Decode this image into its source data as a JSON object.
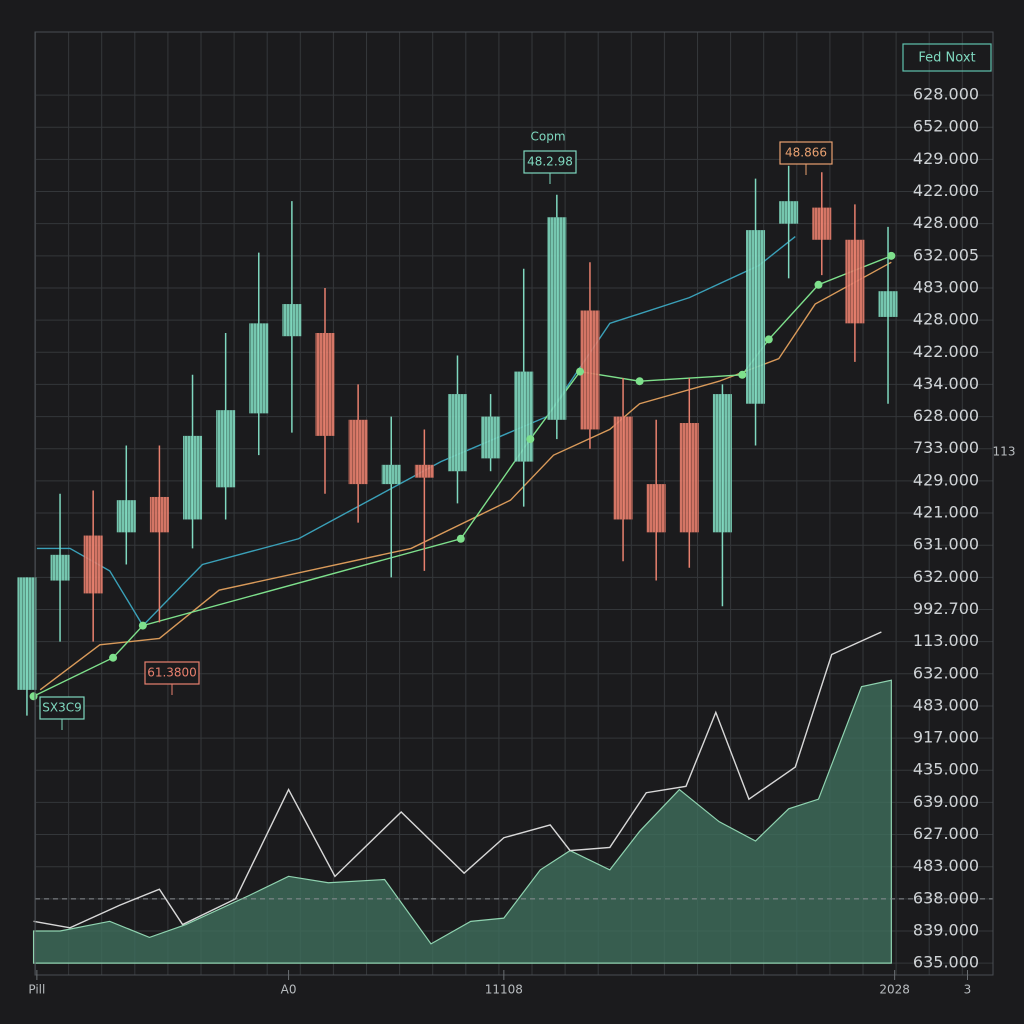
{
  "chart_data": {
    "type": "candlestick",
    "legend_label": "Fed Noxt",
    "side_label": "113",
    "up_color": "#7fd8bf",
    "down_color": "#e8806e",
    "grid": true,
    "x": [
      0,
      1,
      2,
      3,
      4,
      5,
      6,
      7,
      8,
      9,
      10,
      11,
      12,
      13,
      14,
      15,
      16,
      17,
      18,
      19,
      20,
      21,
      22,
      23,
      24,
      25,
      26
    ],
    "open": [
      8.5,
      11.9,
      13.3,
      13.4,
      14.5,
      13.8,
      14.8,
      17.1,
      19.5,
      19.6,
      16.9,
      14.9,
      15.5,
      15.3,
      15.7,
      15.6,
      16.9,
      20.3,
      17.0,
      14.9,
      16.8,
      13.4,
      17.4,
      23.0,
      23.5,
      22.5,
      20.1
    ],
    "high": [
      12.0,
      14.6,
      14.7,
      16.1,
      16.1,
      18.3,
      19.6,
      22.1,
      23.7,
      21.0,
      18.0,
      17.0,
      16.6,
      18.9,
      17.7,
      21.6,
      23.9,
      21.8,
      18.2,
      16.9,
      18.2,
      18.0,
      24.4,
      24.8,
      24.6,
      23.6,
      22.9
    ],
    "low": [
      7.7,
      10.0,
      10.0,
      12.4,
      10.6,
      12.9,
      13.8,
      15.8,
      16.5,
      14.6,
      13.7,
      12.0,
      12.2,
      14.3,
      15.3,
      14.2,
      16.3,
      16.0,
      12.5,
      11.9,
      12.3,
      11.1,
      16.1,
      21.3,
      21.4,
      18.7,
      17.4
    ],
    "close": [
      12.0,
      12.7,
      11.5,
      14.4,
      13.4,
      16.4,
      17.2,
      19.9,
      20.5,
      16.4,
      14.9,
      15.5,
      15.1,
      17.7,
      17.0,
      18.4,
      23.2,
      16.6,
      13.8,
      13.4,
      13.4,
      17.7,
      22.8,
      23.7,
      22.5,
      19.9,
      20.9
    ],
    "overlays": [
      {
        "type": "line",
        "color": "#3aa0b8",
        "x": [
          0.3,
          1.3,
          2.5,
          3.5,
          5.3,
          8.2,
          12.5,
          15.7,
          17.6,
          20.0,
          22.1,
          23.2
        ],
        "values": [
          12.9,
          12.9,
          12.2,
          10.5,
          12.4,
          13.2,
          15.6,
          17.0,
          19.9,
          20.7,
          21.7,
          22.6
        ]
      },
      {
        "type": "line",
        "color": "#d99a5a",
        "x": [
          0.4,
          2.2,
          4.0,
          5.8,
          11.6,
          14.6,
          15.9,
          17.6,
          18.5,
          20.9,
          22.7,
          23.8,
          26.1
        ],
        "values": [
          8.5,
          9.9,
          10.1,
          11.6,
          12.9,
          14.4,
          15.8,
          16.6,
          17.4,
          18.1,
          18.8,
          20.5,
          21.8
        ]
      },
      {
        "type": "line",
        "color": "#7ee08c",
        "markers": true,
        "x": [
          0.2,
          2.6,
          3.5,
          13.1,
          15.2,
          16.7,
          18.5,
          21.6,
          22.4,
          23.9,
          26.1
        ],
        "values": [
          8.3,
          9.5,
          10.5,
          13.2,
          16.3,
          18.4,
          18.1,
          18.3,
          19.4,
          21.1,
          22.0
        ]
      },
      {
        "type": "area",
        "color": "#8fd3b0",
        "x": [
          0.2,
          1.0,
          2.5,
          3.7,
          4.8,
          6.7,
          7.9,
          9.1,
          10.8,
          12.2,
          13.4,
          14.4,
          15.5,
          16.4,
          17.6,
          18.5,
          19.7,
          20.9,
          22.0,
          23.0,
          23.9,
          25.2,
          26.1
        ],
        "values": [
          1.0,
          1.0,
          1.3,
          0.8,
          1.2,
          2.1,
          2.7,
          2.5,
          2.6,
          0.6,
          1.3,
          1.4,
          2.9,
          3.5,
          2.9,
          4.1,
          5.4,
          4.4,
          3.8,
          4.8,
          5.1,
          8.6,
          8.8
        ]
      },
      {
        "type": "line",
        "color": "#d8d8d8",
        "x": [
          0.2,
          1.3,
          2.8,
          4.0,
          4.7,
          6.3,
          7.9,
          9.3,
          11.3,
          13.2,
          14.4,
          15.8,
          16.4,
          17.6,
          18.7,
          19.9,
          20.8,
          21.8,
          23.2,
          24.3,
          25.8
        ],
        "values": [
          1.3,
          1.1,
          1.8,
          2.3,
          1.2,
          2.0,
          5.4,
          2.7,
          4.7,
          2.8,
          3.9,
          4.3,
          3.5,
          3.6,
          5.3,
          5.5,
          7.8,
          5.1,
          6.1,
          9.6,
          10.3
        ]
      }
    ],
    "hline": 2.0,
    "annotations": [
      "Copm",
      "48.2.98",
      "48.866",
      "61.3800",
      "SX3C9"
    ],
    "xlim": [
      -0.3,
      29.2
    ],
    "xticks": [
      {
        "value": 0.3,
        "label": "Pill"
      },
      {
        "value": 7.9,
        "label": "A0"
      },
      {
        "value": 14.4,
        "label": "11108"
      },
      {
        "value": 26.2,
        "label": "2028"
      },
      {
        "value": 28.4,
        "label": "3"
      }
    ],
    "ylim": [
      -0.4,
      28.9
    ],
    "yticks": [
      {
        "value": 0,
        "label": "635.000"
      },
      {
        "value": 1,
        "label": "839.000"
      },
      {
        "value": 2,
        "label": "638.000"
      },
      {
        "value": 3,
        "label": "483.000"
      },
      {
        "value": 4,
        "label": "627.000"
      },
      {
        "value": 5,
        "label": "639.000"
      },
      {
        "value": 6,
        "label": "435.000"
      },
      {
        "value": 7,
        "label": "917.000"
      },
      {
        "value": 8,
        "label": "483.000"
      },
      {
        "value": 9,
        "label": "632.000"
      },
      {
        "value": 10,
        "label": "113.000"
      },
      {
        "value": 11,
        "label": "992.700"
      },
      {
        "value": 12,
        "label": "632.000"
      },
      {
        "value": 13,
        "label": "631.000"
      },
      {
        "value": 14,
        "label": "421.000"
      },
      {
        "value": 15,
        "label": "429.000"
      },
      {
        "value": 16,
        "label": "733.000"
      },
      {
        "value": 17,
        "label": "628.000"
      },
      {
        "value": 18,
        "label": "434.000"
      },
      {
        "value": 19,
        "label": "422.000"
      },
      {
        "value": 20,
        "label": "428.000"
      },
      {
        "value": 21,
        "label": "483.000"
      },
      {
        "value": 22,
        "label": "632.005"
      },
      {
        "value": 23,
        "label": "428.000"
      },
      {
        "value": 24,
        "label": "422.000"
      },
      {
        "value": 25,
        "label": "429.000"
      },
      {
        "value": 26,
        "label": "652.000"
      },
      {
        "value": 27,
        "label": "628.000"
      }
    ]
  }
}
